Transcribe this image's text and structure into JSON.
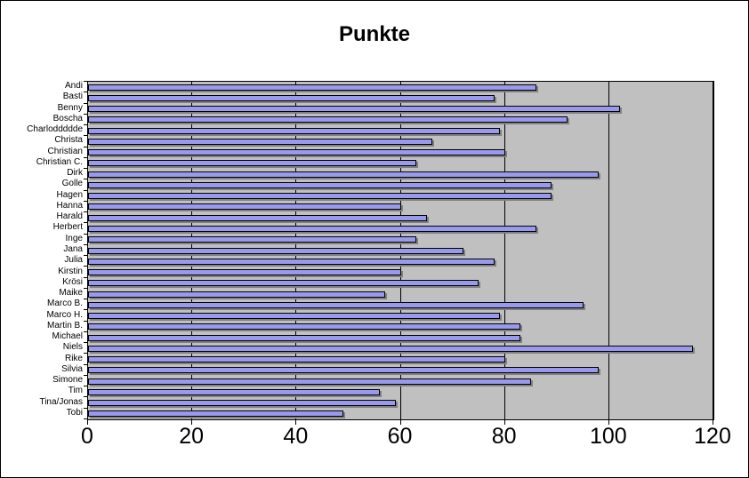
{
  "chart_data": {
    "type": "bar",
    "orientation": "horizontal",
    "title": "Punkte",
    "categories": [
      "Andi",
      "Basti",
      "Benny",
      "Boscha",
      "Charloddddde",
      "Christa",
      "Christian",
      "Christian C.",
      "Dirk",
      "Golle",
      "Hagen",
      "Hanna",
      "Harald",
      "Herbert",
      "Inge",
      "Jana",
      "Julia",
      "Kirstin",
      "Krösi",
      "Maike",
      "Marco B.",
      "Marco H.",
      "Martin B.",
      "Michael",
      "Niels",
      "Rike",
      "Silvia",
      "Simone",
      "Tim",
      "Tina/Jonas",
      "Tobi"
    ],
    "values": [
      86,
      78,
      102,
      92,
      79,
      66,
      80,
      63,
      98,
      89,
      89,
      60,
      65,
      86,
      63,
      72,
      78,
      60,
      75,
      57,
      95,
      79,
      83,
      83,
      116,
      80,
      98,
      85,
      56,
      59,
      49
    ],
    "xlabel": "",
    "ylabel": "",
    "xlim": [
      0,
      120
    ],
    "xticks": [
      0,
      20,
      40,
      60,
      80,
      100,
      120
    ],
    "grid": true,
    "legend": false,
    "colors": {
      "bar_fill": "#9999EE",
      "bar_border": "#000000",
      "bar_shadow": "#808080",
      "plot_bg": "#C0C0C0",
      "grid_line": "#000000",
      "background": "#FFFFFF",
      "text": "#000000"
    }
  }
}
